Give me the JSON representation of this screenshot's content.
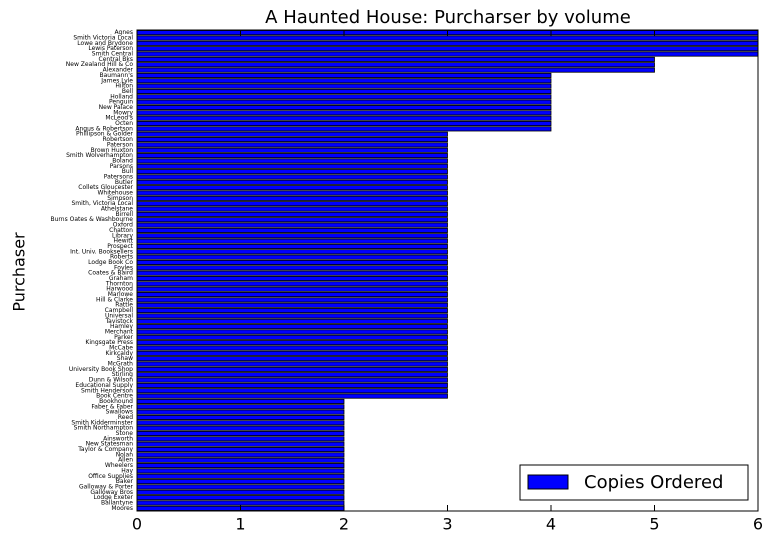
{
  "chart_data": {
    "type": "barh",
    "title": "A Haunted House: Purcharser by volume",
    "y_label": "Purchaser",
    "categories": [
      "Agnes",
      "Smith Victoria Local",
      "Lowe and Brydone",
      "Lewis Paterson",
      "Smith Central",
      "Central Bks",
      "New Zealand Hill & Co",
      "Alexander",
      "Baumann's",
      "James Lyle",
      "Hilton",
      "Bell",
      "Holland",
      "Penguin",
      "New Palace",
      "Mowry",
      "McLeod's",
      "Octen",
      "Angus & Robertson",
      "Phillipson & Golder",
      "Robertson",
      "Paterson",
      "Brown Huxton",
      "Smith Wolverhampton",
      "Boland",
      "Parsons",
      "Bull",
      "Patersons",
      "Butler",
      "Collets Gloucester",
      "Whitehouse",
      "Simpson",
      "Smith, Victoria Local",
      "Athelstane",
      "Birrell",
      "Burns Oates & Washbourne",
      "Oxford",
      "Chatton",
      "Library",
      "Hewitt",
      "Prospect",
      "Int. Univ. Booksellers",
      "Roberts",
      "Lodge Book Co",
      "Foyles",
      "Coates & Baird",
      "Graham",
      "Thornton",
      "Harwood",
      "Marlowe",
      "Hill & Clarke",
      "Rattle",
      "Campbell",
      "Universal",
      "Tavistock",
      "Hamley",
      "Merchant",
      "Parker",
      "Kingsgate Press",
      "McCabe",
      "Kirkcaldy",
      "Shaw",
      "McGrath",
      "University Book Shop",
      "Stirling",
      "Dunn & Wilson",
      "Educational Supply",
      "Smith Henderson",
      "Book Centre",
      "Bookhound",
      "Faber & Faber",
      "Swallows",
      "Reed",
      "Smith Kidderminster",
      "Smith Northampton",
      "Stone",
      "Ainsworth",
      "New Statesman",
      "Taylor & Company",
      "Nolan",
      "Allen",
      "Wheelers",
      "Hay",
      "Office Supplies",
      "Baker",
      "Galloway & Porter",
      "Galloway Bros",
      "Lodge Exeter",
      "Ballantyne",
      "Moores"
    ],
    "series": [
      {
        "name": "Copies Ordered",
        "color": "#0000ff",
        "values": [
          6,
          6,
          6,
          6,
          6,
          5,
          5,
          5,
          4,
          4,
          4,
          4,
          4,
          4,
          4,
          4,
          4,
          4,
          4,
          3,
          3,
          3,
          3,
          3,
          3,
          3,
          3,
          3,
          3,
          3,
          3,
          3,
          3,
          3,
          3,
          3,
          3,
          3,
          3,
          3,
          3,
          3,
          3,
          3,
          3,
          3,
          3,
          3,
          3,
          3,
          3,
          3,
          3,
          3,
          3,
          3,
          3,
          3,
          3,
          3,
          3,
          3,
          3,
          3,
          3,
          3,
          3,
          3,
          3,
          2,
          2,
          2,
          2,
          2,
          2,
          2,
          2,
          2,
          2,
          2,
          2,
          2,
          2,
          2,
          2,
          2,
          2,
          2,
          2,
          2
        ]
      }
    ],
    "xlim": [
      0,
      6
    ],
    "xticks": [
      0,
      1,
      2,
      3,
      4,
      5,
      6
    ],
    "legend": "lower right"
  }
}
